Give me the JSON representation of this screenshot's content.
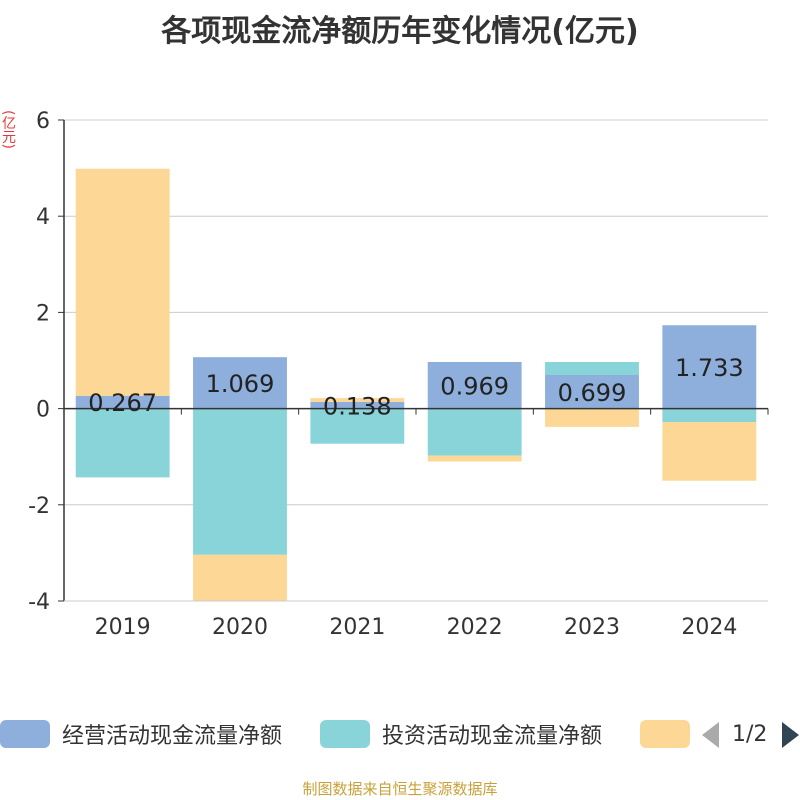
{
  "chart_data": {
    "type": "bar",
    "stacked": true,
    "title": "各项现金流净额历年变化情况(亿元)",
    "ylabel": "(亿元)",
    "xlabel": "",
    "ylim": [
      -4,
      6
    ],
    "yticks": [
      -4,
      -2,
      0,
      2,
      4,
      6
    ],
    "categories": [
      "2019",
      "2020",
      "2021",
      "2022",
      "2023",
      "2024"
    ],
    "series": [
      {
        "name": "经营活动现金流量净额",
        "color": "#8eaedb",
        "values": [
          0.267,
          1.069,
          0.138,
          0.969,
          0.699,
          1.733
        ],
        "labels": [
          "0.267",
          "1.069",
          "0.138",
          "0.969",
          "0.699",
          "1.733"
        ]
      },
      {
        "name": "投资活动现金流量净额",
        "color": "#88d4d8",
        "values": [
          -1.43,
          -3.04,
          -0.73,
          -0.98,
          0.27,
          -0.28
        ]
      },
      {
        "name": "",
        "color": "#fdd796",
        "values": [
          4.72,
          -1.5,
          0.08,
          -0.12,
          -0.38,
          -1.22
        ]
      }
    ],
    "legend_position": "bottom"
  },
  "legend": {
    "items": [
      {
        "label": "经营活动现金流量净额",
        "color": "#8eaedb"
      },
      {
        "label": "投资活动现金流量净额",
        "color": "#88d4d8"
      },
      {
        "label": "",
        "color": "#fdd796"
      }
    ],
    "page": "1/2"
  },
  "footer": {
    "source": "制图数据来自恒生聚源数据库"
  }
}
